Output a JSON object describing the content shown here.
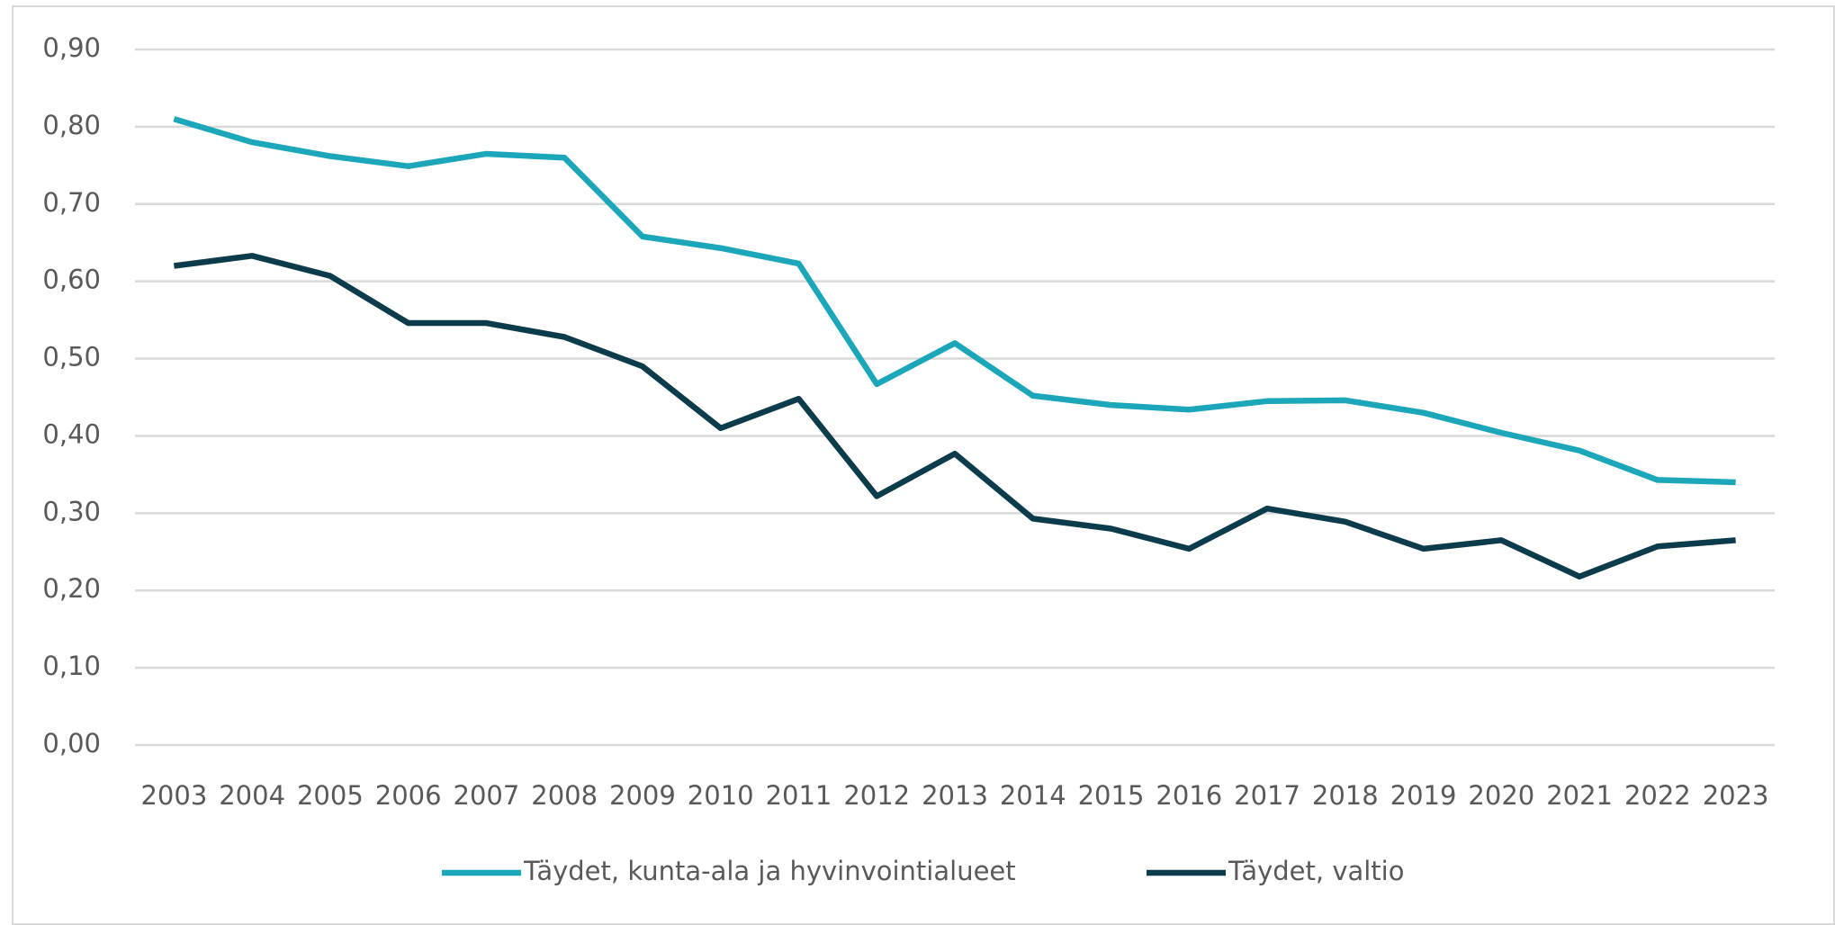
{
  "chart_data": {
    "type": "line",
    "categories": [
      "2003",
      "2004",
      "2005",
      "2006",
      "2007",
      "2008",
      "2009",
      "2010",
      "2011",
      "2012",
      "2013",
      "2014",
      "2015",
      "2016",
      "2017",
      "2018",
      "2019",
      "2020",
      "2021",
      "2022",
      "2023"
    ],
    "series": [
      {
        "name": "Täydet, kunta-ala ja hyvinvointialueet",
        "color": "#1ba6ba",
        "values": [
          0.81,
          0.78,
          0.762,
          0.749,
          0.765,
          0.76,
          0.658,
          0.643,
          0.623,
          0.467,
          0.52,
          0.452,
          0.44,
          0.434,
          0.445,
          0.446,
          0.43,
          0.404,
          0.381,
          0.343,
          0.34
        ]
      },
      {
        "name": "Täydet, valtio",
        "color": "#0c3c4c",
        "values": [
          0.62,
          0.633,
          0.607,
          0.546,
          0.546,
          0.528,
          0.49,
          0.41,
          0.448,
          0.322,
          0.377,
          0.293,
          0.28,
          0.254,
          0.306,
          0.289,
          0.254,
          0.265,
          0.218,
          0.257,
          0.265
        ]
      }
    ],
    "ylim": [
      0,
      0.9
    ],
    "yticks": [
      {
        "value": 0,
        "label": "0,00"
      },
      {
        "value": 0.1,
        "label": "0,10"
      },
      {
        "value": 0.2,
        "label": "0,20"
      },
      {
        "value": 0.3,
        "label": "0,30"
      },
      {
        "value": 0.4,
        "label": "0,40"
      },
      {
        "value": 0.5,
        "label": "0,50"
      },
      {
        "value": 0.6,
        "label": "0,60"
      },
      {
        "value": 0.7,
        "label": "0,70"
      },
      {
        "value": 0.8,
        "label": "0,80"
      },
      {
        "value": 0.9,
        "label": "0,90"
      }
    ],
    "grid": true,
    "legend": "bottom"
  }
}
